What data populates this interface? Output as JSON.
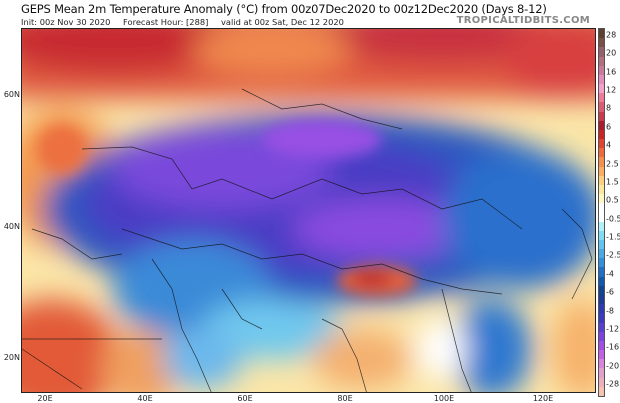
{
  "header": {
    "title": "GEPS Mean 2m Temperature Anomaly (°C) from 00z07Dec2020 to 00z12Dec2020 (Days 8-12)",
    "init": "Init: 00z Nov 30 2020",
    "forecast_hour": "Forecast Hour: [288]",
    "valid": "valid at 00z Sat, Dec 12 2020",
    "brand": "TROPICALTIDBITS.COM"
  },
  "map": {
    "lat_labels": [
      "60N",
      "40N",
      "20N"
    ],
    "lon_labels": [
      "20E",
      "40E",
      "60E",
      "80E",
      "100E",
      "120E"
    ]
  },
  "colorbar": {
    "labels": [
      "28",
      "20",
      "16",
      "12",
      "8",
      "6",
      "4",
      "2.5",
      "1.5",
      "0.5",
      "-0.5",
      "-1.5",
      "-2.5",
      "-4",
      "-6",
      "-8",
      "-12",
      "-16",
      "-20",
      "-28"
    ],
    "colors": [
      "#5e4030",
      "#7a5046",
      "#95606a",
      "#b0707e",
      "#c87a98",
      "#e48cbc",
      "#f4a0cc",
      "#ee7c98",
      "#de5c70",
      "#c83c4c",
      "#a81c30",
      "#cc2424",
      "#e04430",
      "#ee6a3c",
      "#f4904c",
      "#f8b060",
      "#fcd07c",
      "#fce89c",
      "#fdf8c0",
      "#ffffff",
      "#ffffff",
      "#b0f0f8",
      "#80dcf0",
      "#64c4f0",
      "#4aaae6",
      "#3290dc",
      "#2070c8",
      "#1258ac",
      "#10468e",
      "#1c3c98",
      "#2c3cac",
      "#3c3cc0",
      "#5a40d0",
      "#7c44dc",
      "#a04ee4",
      "#c460e6",
      "#d884dc",
      "#e4a0cc",
      "#ecb0bc",
      "#f4c4b0"
    ]
  }
}
